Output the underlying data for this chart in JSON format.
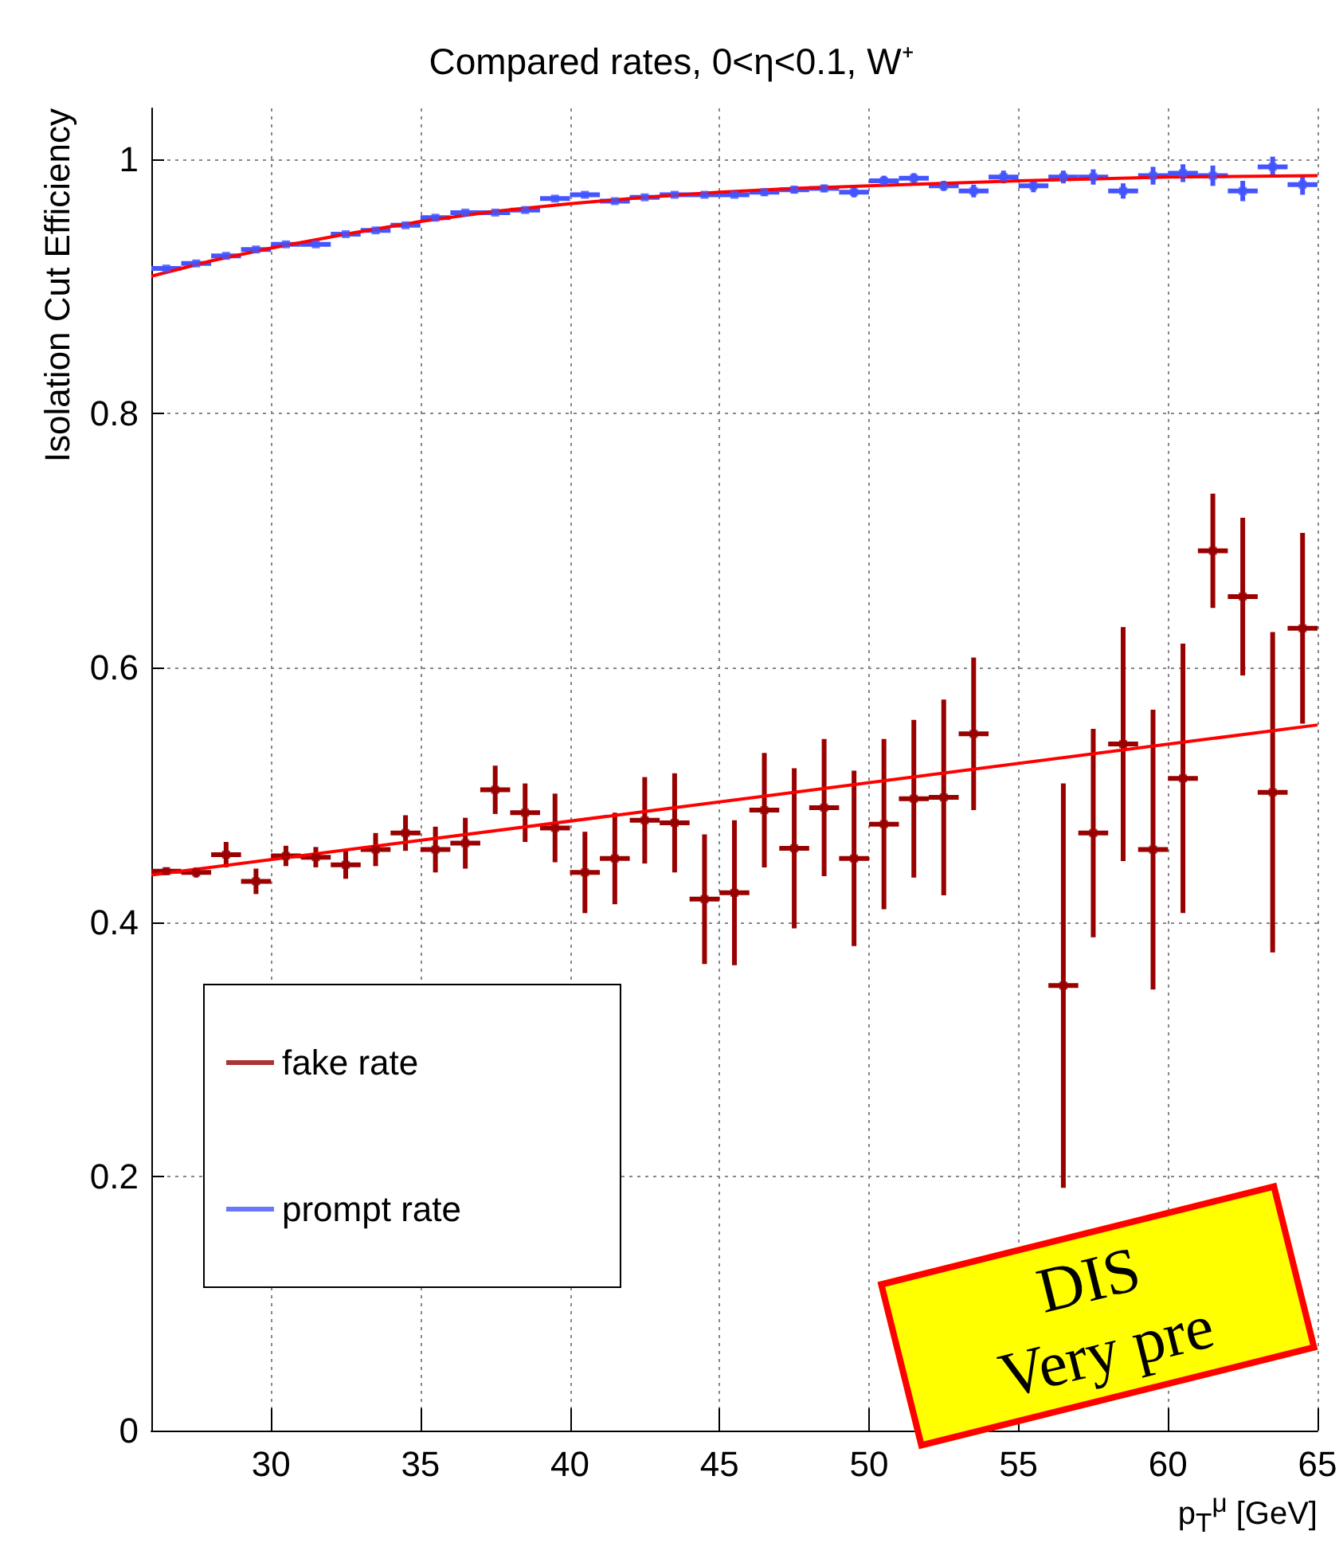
{
  "chart_data": {
    "type": "scatter",
    "title": "Compared rates, 0<η<0.1, W⁺",
    "xlabel": "p$_{T}$$^{μ}$ [GeV]",
    "ylabel": "Isolation Cut Efficiency",
    "x": [
      26.5,
      27.5,
      28.5,
      29.5,
      30.5,
      31.5,
      32.5,
      33.5,
      34.5,
      35.5,
      36.5,
      37.5,
      38.5,
      39.5,
      40.5,
      41.5,
      42.5,
      43.5,
      44.5,
      45.5,
      46.5,
      47.5,
      48.5,
      49.5,
      50.5,
      51.5,
      52.5,
      53.5,
      54.5,
      55.5,
      56.5,
      57.5,
      58.5,
      59.5,
      60.5,
      61.5,
      62.5,
      63.5,
      64.5
    ],
    "series": [
      {
        "name": "fake rate",
        "color": "#990000",
        "values": [
          0.44,
          0.439,
          0.453,
          0.432,
          0.452,
          0.451,
          0.445,
          0.457,
          0.47,
          0.457,
          0.462,
          0.504,
          0.486,
          0.474,
          0.439,
          0.45,
          0.48,
          0.478,
          0.418,
          0.423,
          0.488,
          0.458,
          0.49,
          0.45,
          0.477,
          0.497,
          0.498,
          0.548,
          null,
          null,
          0.35,
          0.47,
          0.54,
          0.457,
          0.513,
          0.692,
          0.656,
          0.502,
          0.631
        ],
        "errors": [
          0.003,
          0.004,
          0.01,
          0.01,
          0.008,
          0.008,
          0.011,
          0.013,
          0.014,
          0.018,
          0.02,
          0.019,
          0.023,
          0.027,
          0.032,
          0.036,
          0.034,
          0.039,
          0.051,
          0.057,
          0.045,
          0.063,
          0.054,
          0.069,
          0.067,
          0.062,
          0.077,
          0.06,
          null,
          null,
          0.159,
          0.082,
          0.092,
          0.11,
          0.106,
          0.045,
          0.062,
          0.126,
          0.075
        ],
        "xerrors": [
          0.5,
          0.5,
          0.5,
          0.5,
          0.5,
          0.5,
          0.5,
          0.5,
          0.5,
          0.5,
          0.5,
          0.5,
          0.5,
          0.5,
          0.5,
          0.5,
          0.5,
          0.5,
          0.5,
          0.5,
          0.5,
          0.5,
          0.5,
          0.5,
          0.5,
          0.5,
          0.5,
          0.5,
          null,
          null,
          0.5,
          0.5,
          0.5,
          0.5,
          0.5,
          0.5,
          0.5,
          0.5,
          0.5
        ]
      },
      {
        "name": "prompt rate",
        "color": "#4455ff",
        "values": [
          0.914,
          0.918,
          0.924,
          0.929,
          0.933,
          0.933,
          0.941,
          0.944,
          0.948,
          0.954,
          0.958,
          0.958,
          0.96,
          0.969,
          0.972,
          0.967,
          0.97,
          0.972,
          0.972,
          0.972,
          0.974,
          0.976,
          0.977,
          0.974,
          0.983,
          0.985,
          0.979,
          0.975,
          0.986,
          0.979,
          0.986,
          0.986,
          0.975,
          0.987,
          0.989,
          0.987,
          0.975,
          0.994,
          0.98
        ],
        "errors": [
          0.002,
          0.002,
          0.002,
          0.002,
          0.002,
          0.002,
          0.002,
          0.002,
          0.002,
          0.002,
          0.002,
          0.002,
          0.002,
          0.002,
          0.002,
          0.002,
          0.002,
          0.002,
          0.002,
          0.002,
          0.003,
          0.003,
          0.003,
          0.004,
          0.004,
          0.004,
          0.004,
          0.005,
          0.005,
          0.005,
          0.005,
          0.006,
          0.006,
          0.007,
          0.007,
          0.008,
          0.008,
          0.008,
          0.008
        ],
        "xerrors": [
          0.5,
          0.5,
          0.5,
          0.5,
          0.5,
          0.5,
          0.5,
          0.5,
          0.5,
          0.5,
          0.5,
          0.5,
          0.5,
          0.5,
          0.5,
          0.5,
          0.5,
          0.5,
          0.5,
          0.5,
          0.5,
          0.5,
          0.5,
          0.5,
          0.5,
          0.5,
          0.5,
          0.5,
          0.5,
          0.5,
          0.5,
          0.5,
          0.5,
          0.5,
          0.5,
          0.5,
          0.5,
          0.5,
          0.5
        ]
      },
      {
        "type": "line",
        "color": "#ff0000",
        "x": [
          26,
          65
        ],
        "values": [
          0.437,
          0.555
        ]
      },
      {
        "type": "line",
        "color": "#ff0000",
        "x": [
          26,
          28,
          30,
          32.5,
          35,
          37.5,
          40,
          42.5,
          45,
          47.5,
          50,
          55,
          60,
          65
        ],
        "values": [
          0.908,
          0.92,
          0.93,
          0.941,
          0.951,
          0.959,
          0.965,
          0.97,
          0.974,
          0.977,
          0.979,
          0.983,
          0.986,
          0.987
        ]
      }
    ],
    "xlim": [
      26,
      65
    ],
    "xticks": [
      30,
      35,
      40,
      45,
      50,
      55,
      60,
      65
    ],
    "ylim": [
      0,
      1.04
    ],
    "yticks": [
      0,
      0.2,
      0.4,
      0.6,
      0.8,
      1
    ],
    "grid": true,
    "legend": "bottom left",
    "annotations": [
      "DIS",
      "Very pre"
    ]
  }
}
